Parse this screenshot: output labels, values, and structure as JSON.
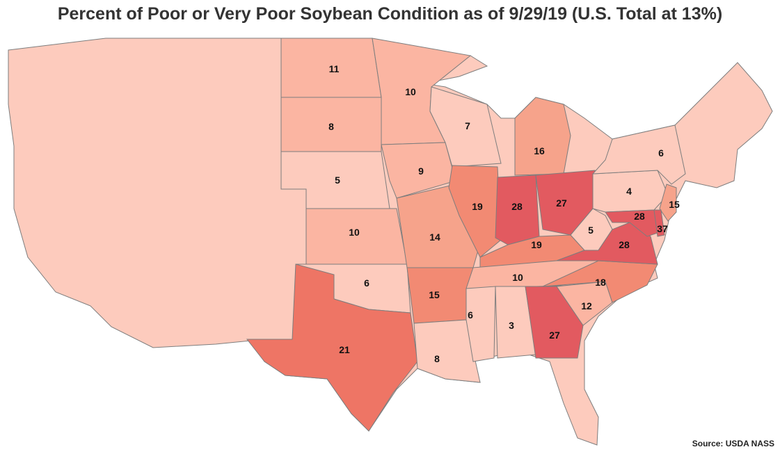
{
  "title": "Percent of Poor or Very Poor Soybean Condition as of 9/29/19 (U.S. Total at 13%)",
  "source": "Source: USDA NASS",
  "colors": {
    "lowest": "#fdcbbd",
    "low": "#fbb5a2",
    "mid": "#f6a38b",
    "midhigh": "#f28a73",
    "high": "#ee7565",
    "highest": "#e25a60",
    "border": "#7d7d7d"
  },
  "map_data": {
    "type": "choropleth",
    "metric": "percent poor or very poor",
    "states": [
      {
        "name": "ND",
        "value": 11
      },
      {
        "name": "MN",
        "value": 10
      },
      {
        "name": "SD",
        "value": 8
      },
      {
        "name": "WI",
        "value": 7
      },
      {
        "name": "MI",
        "value": 16
      },
      {
        "name": "NE",
        "value": 5
      },
      {
        "name": "IA",
        "value": 9
      },
      {
        "name": "IL",
        "value": 19
      },
      {
        "name": "IN",
        "value": 28
      },
      {
        "name": "OH",
        "value": 27
      },
      {
        "name": "NY",
        "value": 6
      },
      {
        "name": "PA",
        "value": 4
      },
      {
        "name": "NJ",
        "value": 15
      },
      {
        "name": "KS",
        "value": 10
      },
      {
        "name": "MO",
        "value": 14
      },
      {
        "name": "KY",
        "value": 19
      },
      {
        "name": "WV",
        "value": 5
      },
      {
        "name": "VA",
        "value": 28
      },
      {
        "name": "MD",
        "value": 28
      },
      {
        "name": "DE",
        "value": 37
      },
      {
        "name": "OK",
        "value": 6
      },
      {
        "name": "AR",
        "value": 15
      },
      {
        "name": "TN",
        "value": 10
      },
      {
        "name": "NC",
        "value": 18
      },
      {
        "name": "SC",
        "value": 12
      },
      {
        "name": "MS",
        "value": 6
      },
      {
        "name": "AL",
        "value": 3
      },
      {
        "name": "GA",
        "value": 27
      },
      {
        "name": "TX",
        "value": 21
      },
      {
        "name": "LA",
        "value": 8
      }
    ]
  }
}
